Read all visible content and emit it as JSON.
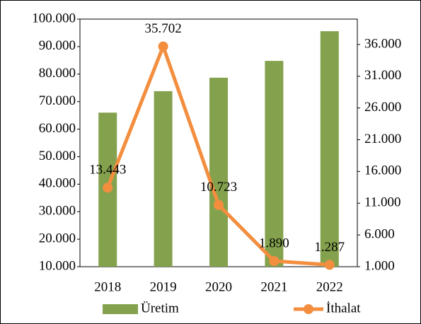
{
  "chart_data": {
    "type": "bar_line",
    "categories": [
      "2018",
      "2019",
      "2020",
      "2021",
      "2022"
    ],
    "series": [
      {
        "name": "Üretim",
        "color": "#84a24d",
        "values": [
          66000,
          73800,
          78700,
          84800,
          95600
        ]
      },
      {
        "name": "İthalat",
        "color": "#f38e3f",
        "axis": "y2",
        "values": [
          13443,
          35702,
          10723,
          1890,
          1287
        ],
        "value_labels": [
          "13.443",
          "35.702",
          "10.723",
          "1.890",
          "1.287"
        ]
      }
    ],
    "ylim": [
      10000,
      100000
    ],
    "yticks": [
      {
        "value": 10000,
        "label": "10.000"
      },
      {
        "value": 20000,
        "label": "20.000"
      },
      {
        "value": 30000,
        "label": "30.000"
      },
      {
        "value": 40000,
        "label": "40.000"
      },
      {
        "value": 50000,
        "label": "50.000"
      },
      {
        "value": 60000,
        "label": "60.000"
      },
      {
        "value": 70000,
        "label": "70.000"
      },
      {
        "value": 80000,
        "label": "80.000"
      },
      {
        "value": 90000,
        "label": "90.000"
      },
      {
        "value": 100000,
        "label": "100.000"
      }
    ],
    "y2lim": [
      1000,
      40000
    ],
    "y2ticks": [
      {
        "value": 1000,
        "label": "1.000"
      },
      {
        "value": 6000,
        "label": "6.000"
      },
      {
        "value": 11000,
        "label": "11.000"
      },
      {
        "value": 16000,
        "label": "16.000"
      },
      {
        "value": 21000,
        "label": "21.000"
      },
      {
        "value": 26000,
        "label": "26.000"
      },
      {
        "value": 31000,
        "label": "31.000"
      },
      {
        "value": 36000,
        "label": "36.000"
      }
    ],
    "legend": "bottom"
  }
}
